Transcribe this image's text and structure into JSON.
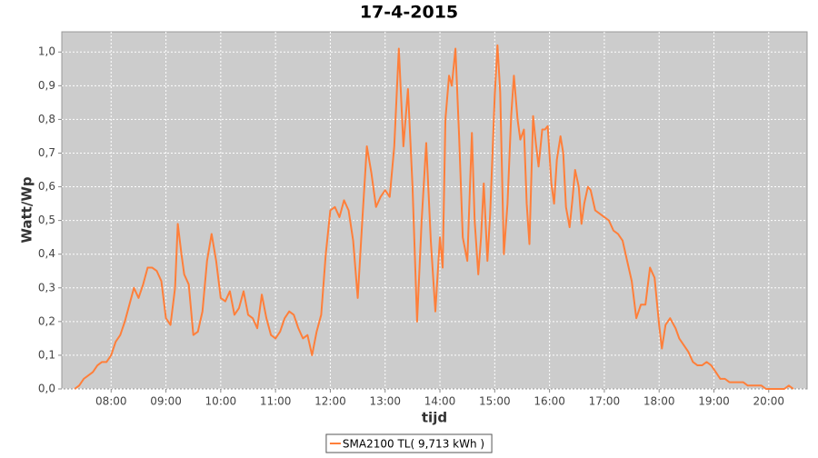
{
  "chart_data": {
    "type": "line",
    "title": "17-4-2015",
    "x_label": "tijd",
    "y_label": "Watt/Wp",
    "grid": true,
    "legend": "bottom",
    "xlim": [
      "07:06",
      "20:42"
    ],
    "xticks": [
      "08:00",
      "09:00",
      "10:00",
      "11:00",
      "12:00",
      "13:00",
      "14:00",
      "15:00",
      "16:00",
      "17:00",
      "18:00",
      "19:00",
      "20:00"
    ],
    "ylim": [
      0,
      1.06
    ],
    "yticks": [
      {
        "value": 0,
        "label": "0,0"
      },
      {
        "value": 0.1,
        "label": "0,1"
      },
      {
        "value": 0.2,
        "label": "0,2"
      },
      {
        "value": 0.3,
        "label": "0,3"
      },
      {
        "value": 0.4,
        "label": "0,4"
      },
      {
        "value": 0.5,
        "label": "0,5"
      },
      {
        "value": 0.6,
        "label": "0,6"
      },
      {
        "value": 0.7,
        "label": "0,7"
      },
      {
        "value": 0.8,
        "label": "0,8"
      },
      {
        "value": 0.9,
        "label": "0,9"
      },
      {
        "value": 1.0,
        "label": "1,0"
      }
    ],
    "x": [
      "07:20",
      "07:25",
      "07:30",
      "07:35",
      "07:40",
      "07:45",
      "07:50",
      "07:55",
      "08:00",
      "08:05",
      "08:10",
      "08:15",
      "08:20",
      "08:25",
      "08:30",
      "08:35",
      "08:40",
      "08:45",
      "08:50",
      "08:55",
      "09:00",
      "09:05",
      "09:10",
      "09:13",
      "09:17",
      "09:20",
      "09:25",
      "09:30",
      "09:35",
      "09:40",
      "09:45",
      "09:50",
      "09:55",
      "10:00",
      "10:05",
      "10:10",
      "10:15",
      "10:20",
      "10:25",
      "10:30",
      "10:35",
      "10:40",
      "10:45",
      "10:50",
      "10:55",
      "11:00",
      "11:05",
      "11:10",
      "11:15",
      "11:20",
      "11:25",
      "11:30",
      "11:35",
      "11:40",
      "11:45",
      "11:50",
      "11:55",
      "12:00",
      "12:05",
      "12:10",
      "12:15",
      "12:20",
      "12:25",
      "12:30",
      "12:35",
      "12:40",
      "12:45",
      "12:50",
      "12:55",
      "13:00",
      "13:05",
      "13:10",
      "13:15",
      "13:20",
      "13:25",
      "13:30",
      "13:35",
      "13:40",
      "13:45",
      "13:50",
      "13:55",
      "14:00",
      "14:03",
      "14:06",
      "14:10",
      "14:13",
      "14:17",
      "14:21",
      "14:25",
      "14:30",
      "14:35",
      "14:38",
      "14:42",
      "14:45",
      "14:48",
      "14:52",
      "14:55",
      "15:00",
      "15:03",
      "15:06",
      "15:10",
      "15:14",
      "15:18",
      "15:21",
      "15:25",
      "15:28",
      "15:32",
      "15:35",
      "15:38",
      "15:42",
      "15:45",
      "15:48",
      "15:52",
      "15:55",
      "15:58",
      "16:02",
      "16:05",
      "16:08",
      "16:12",
      "16:15",
      "16:18",
      "16:22",
      "16:25",
      "16:28",
      "16:32",
      "16:35",
      "16:38",
      "16:42",
      "16:45",
      "16:50",
      "16:55",
      "17:00",
      "17:05",
      "17:10",
      "17:15",
      "17:20",
      "17:25",
      "17:30",
      "17:35",
      "17:40",
      "17:45",
      "17:50",
      "17:55",
      "18:00",
      "18:03",
      "18:07",
      "18:12",
      "18:18",
      "18:22",
      "18:27",
      "18:32",
      "18:37",
      "18:42",
      "18:47",
      "18:52",
      "18:57",
      "19:02",
      "19:07",
      "19:12",
      "19:17",
      "19:22",
      "19:27",
      "19:32",
      "19:37",
      "19:42",
      "19:47",
      "19:52",
      "19:57",
      "20:02",
      "20:07",
      "20:12",
      "20:17",
      "20:22",
      "20:27"
    ],
    "series": [
      {
        "name": "SMA2100 TL( 9,713 kWh )",
        "color": "#ff7f3a",
        "values": [
          0.0,
          0.01,
          0.03,
          0.04,
          0.05,
          0.07,
          0.08,
          0.08,
          0.1,
          0.14,
          0.16,
          0.2,
          0.25,
          0.3,
          0.27,
          0.31,
          0.36,
          0.36,
          0.35,
          0.32,
          0.21,
          0.19,
          0.3,
          0.49,
          0.4,
          0.34,
          0.31,
          0.16,
          0.17,
          0.23,
          0.38,
          0.46,
          0.38,
          0.27,
          0.26,
          0.29,
          0.22,
          0.24,
          0.29,
          0.22,
          0.21,
          0.18,
          0.28,
          0.21,
          0.16,
          0.15,
          0.17,
          0.21,
          0.23,
          0.22,
          0.18,
          0.15,
          0.16,
          0.1,
          0.17,
          0.22,
          0.4,
          0.53,
          0.54,
          0.51,
          0.56,
          0.53,
          0.44,
          0.27,
          0.5,
          0.72,
          0.64,
          0.54,
          0.57,
          0.59,
          0.57,
          0.72,
          1.01,
          0.72,
          0.89,
          0.6,
          0.2,
          0.5,
          0.73,
          0.44,
          0.23,
          0.45,
          0.36,
          0.8,
          0.93,
          0.9,
          1.01,
          0.75,
          0.45,
          0.38,
          0.76,
          0.5,
          0.34,
          0.45,
          0.61,
          0.38,
          0.52,
          0.87,
          1.02,
          0.88,
          0.4,
          0.55,
          0.81,
          0.93,
          0.8,
          0.74,
          0.77,
          0.55,
          0.43,
          0.81,
          0.73,
          0.66,
          0.77,
          0.77,
          0.78,
          0.61,
          0.55,
          0.68,
          0.75,
          0.7,
          0.54,
          0.48,
          0.56,
          0.65,
          0.6,
          0.49,
          0.55,
          0.6,
          0.59,
          0.53,
          0.52,
          0.51,
          0.5,
          0.47,
          0.46,
          0.44,
          0.38,
          0.32,
          0.21,
          0.25,
          0.25,
          0.36,
          0.33,
          0.19,
          0.12,
          0.19,
          0.21,
          0.18,
          0.15,
          0.13,
          0.11,
          0.08,
          0.07,
          0.07,
          0.08,
          0.07,
          0.05,
          0.03,
          0.03,
          0.02,
          0.02,
          0.02,
          0.02,
          0.01,
          0.01,
          0.01,
          0.01,
          0.0,
          0.0,
          0.0,
          0.0,
          0.0,
          0.01,
          0.0
        ]
      }
    ]
  }
}
